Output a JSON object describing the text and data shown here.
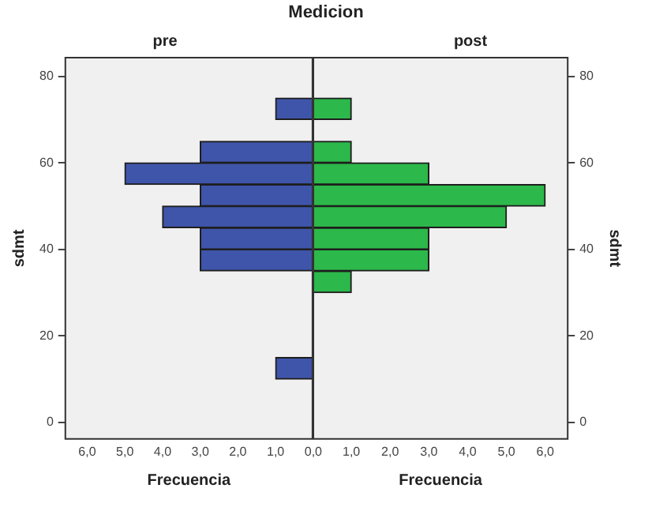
{
  "chart_data": [
    {
      "type": "histogram",
      "orientation": "horizontal",
      "title": "pre",
      "annotations": [
        "Medicion"
      ],
      "xlabel": "Frecuencia",
      "ylabel": "sdmt",
      "color": "#3f55a9",
      "grid": false,
      "bins": [
        10,
        15,
        20,
        25,
        30,
        35,
        40,
        45,
        50,
        55,
        60,
        65,
        70,
        75
      ],
      "values": [
        1,
        0,
        0,
        0,
        0,
        3,
        3,
        4,
        3,
        5,
        3,
        0,
        1
      ],
      "xlim": [
        6.6,
        0
      ],
      "xticks": [
        {
          "value": 6,
          "label": "6,0"
        },
        {
          "value": 5,
          "label": "5,0"
        },
        {
          "value": 4,
          "label": "4,0"
        },
        {
          "value": 3,
          "label": "3,0"
        },
        {
          "value": 2,
          "label": "2,0"
        },
        {
          "value": 1,
          "label": "1,0"
        },
        {
          "value": 0,
          "label": "0,0"
        }
      ],
      "ylim": [
        -4,
        84.5
      ],
      "yticks": [
        0,
        20,
        40,
        60,
        80
      ]
    },
    {
      "type": "histogram",
      "orientation": "horizontal",
      "title": "post",
      "xlabel": "Frecuencia",
      "ylabel": "sdmt",
      "color": "#2cb84a",
      "grid": false,
      "bins": [
        30,
        35,
        40,
        45,
        50,
        55,
        60,
        65,
        70,
        75
      ],
      "values": [
        1,
        3,
        3,
        5,
        6,
        3,
        1,
        0,
        1
      ],
      "xlim": [
        0,
        6.6
      ],
      "xticks": [
        {
          "value": 0,
          "label": null
        },
        {
          "value": 1,
          "label": "1,0"
        },
        {
          "value": 2,
          "label": "2,0"
        },
        {
          "value": 3,
          "label": "3,0"
        },
        {
          "value": 4,
          "label": "4,0"
        },
        {
          "value": 5,
          "label": "5,0"
        },
        {
          "value": 6,
          "label": "6,0"
        }
      ],
      "ylim": [
        -4,
        84.5
      ],
      "yticks": [
        0,
        20,
        40,
        60,
        80
      ]
    }
  ]
}
